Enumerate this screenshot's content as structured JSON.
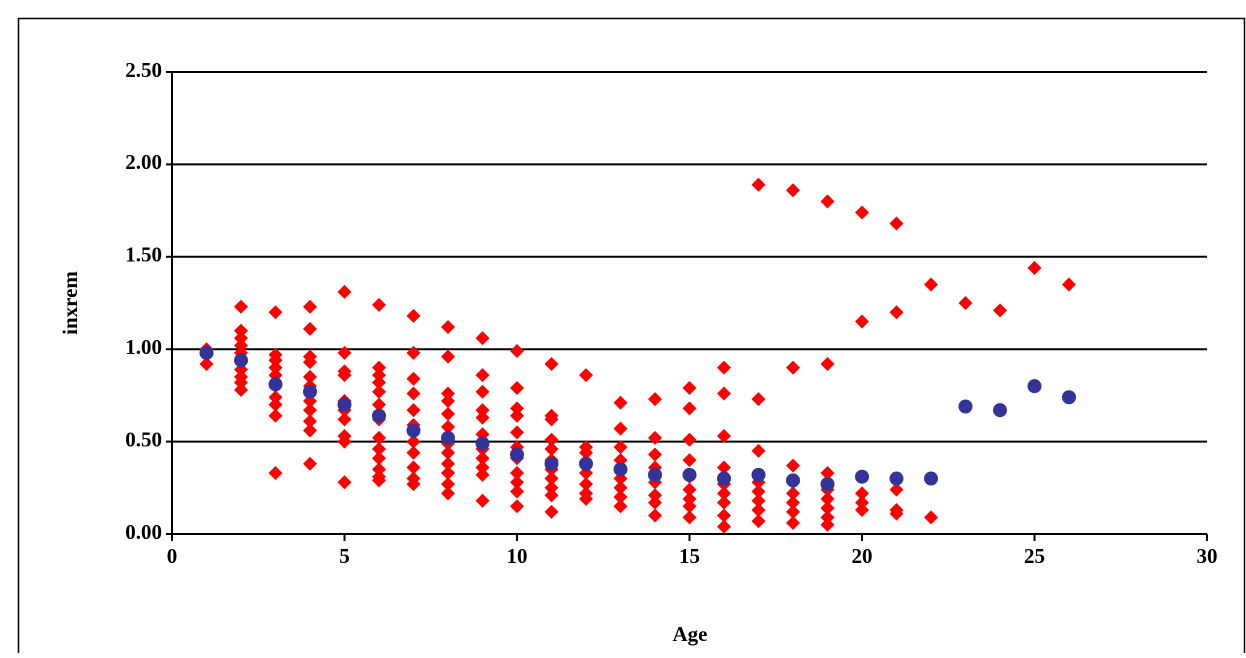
{
  "chart_data": {
    "type": "scatter",
    "x_label": "Age",
    "y_label": "inxrem",
    "xlim": [
      0,
      30
    ],
    "xticks": [
      0,
      5,
      10,
      15,
      20,
      25,
      30
    ],
    "ylim": [
      0,
      2.5
    ],
    "yticks": [
      {
        "value": 0,
        "label": "0.00"
      },
      {
        "value": 0.5,
        "label": "0.50"
      },
      {
        "value": 1,
        "label": "1.00"
      },
      {
        "value": 1.5,
        "label": "1.50"
      },
      {
        "value": 2,
        "label": "2.00"
      },
      {
        "value": 2.5,
        "label": "2.50"
      }
    ],
    "grid": true,
    "series": [
      {
        "color": "#ff0000",
        "marker": "diamond",
        "x": [
          1,
          1,
          1,
          2,
          2,
          2,
          2,
          2,
          2,
          2,
          2,
          2,
          2,
          3,
          3,
          3,
          3,
          3,
          3,
          3,
          3,
          3,
          3,
          4,
          4,
          4,
          4,
          4,
          4,
          4,
          4,
          4,
          4,
          4,
          5,
          5,
          5,
          5,
          5,
          5,
          5,
          5,
          5,
          5,
          6,
          6,
          6,
          6,
          6,
          6,
          6,
          6,
          6,
          6,
          6,
          6,
          6,
          7,
          7,
          7,
          7,
          7,
          7,
          7,
          7,
          7,
          7,
          7,
          8,
          8,
          8,
          8,
          8,
          8,
          8,
          8,
          8,
          8,
          8,
          8,
          9,
          9,
          9,
          9,
          9,
          9,
          9,
          9,
          9,
          9,
          9,
          10,
          10,
          10,
          10,
          10,
          10,
          10,
          10,
          10,
          10,
          10,
          11,
          11,
          11,
          11,
          11,
          11,
          11,
          11,
          11,
          11,
          11,
          12,
          12,
          12,
          12,
          12,
          12,
          12,
          12,
          13,
          13,
          13,
          13,
          13,
          13,
          13,
          13,
          14,
          14,
          14,
          14,
          14,
          14,
          14,
          14,
          15,
          15,
          15,
          15,
          15,
          15,
          15,
          15,
          15,
          16,
          16,
          16,
          16,
          16,
          16,
          16,
          16,
          16,
          17,
          17,
          17,
          17,
          17,
          17,
          17,
          17,
          18,
          18,
          18,
          18,
          18,
          18,
          18,
          18,
          19,
          19,
          19,
          19,
          19,
          19,
          19,
          19,
          20,
          20,
          20,
          20,
          20,
          21,
          21,
          21,
          21,
          21,
          22,
          22,
          23,
          24,
          25,
          26
        ],
        "y": [
          1.0,
          0.97,
          0.92,
          1.23,
          1.1,
          1.06,
          1.02,
          0.98,
          0.93,
          0.89,
          0.85,
          0.82,
          0.78,
          1.2,
          0.97,
          0.94,
          0.9,
          0.86,
          0.8,
          0.74,
          0.7,
          0.64,
          0.33,
          1.23,
          1.11,
          0.96,
          0.93,
          0.85,
          0.8,
          0.72,
          0.67,
          0.61,
          0.56,
          0.38,
          1.31,
          0.98,
          0.88,
          0.86,
          0.72,
          0.67,
          0.62,
          0.53,
          0.5,
          0.28,
          1.24,
          0.9,
          0.86,
          0.82,
          0.77,
          0.7,
          0.62,
          0.52,
          0.46,
          0.41,
          0.35,
          0.31,
          0.29,
          1.18,
          0.98,
          0.84,
          0.76,
          0.67,
          0.59,
          0.5,
          0.44,
          0.36,
          0.3,
          0.27,
          1.12,
          0.96,
          0.76,
          0.72,
          0.65,
          0.58,
          0.49,
          0.44,
          0.38,
          0.33,
          0.27,
          0.22,
          1.06,
          0.86,
          0.77,
          0.67,
          0.63,
          0.54,
          0.46,
          0.41,
          0.36,
          0.32,
          0.18,
          0.99,
          0.79,
          0.68,
          0.64,
          0.55,
          0.47,
          0.41,
          0.33,
          0.28,
          0.23,
          0.15,
          0.92,
          0.64,
          0.62,
          0.51,
          0.46,
          0.4,
          0.35,
          0.3,
          0.25,
          0.21,
          0.12,
          0.86,
          0.47,
          0.44,
          0.39,
          0.33,
          0.27,
          0.22,
          0.19,
          0.71,
          0.57,
          0.47,
          0.4,
          0.3,
          0.25,
          0.2,
          0.15,
          0.73,
          0.52,
          0.43,
          0.36,
          0.28,
          0.21,
          0.17,
          0.1,
          0.79,
          0.68,
          0.51,
          0.4,
          0.31,
          0.24,
          0.19,
          0.15,
          0.09,
          0.9,
          0.76,
          0.53,
          0.36,
          0.27,
          0.22,
          0.17,
          0.1,
          0.04,
          1.89,
          0.73,
          0.45,
          0.28,
          0.23,
          0.18,
          0.13,
          0.07,
          1.86,
          0.9,
          0.37,
          0.28,
          0.22,
          0.17,
          0.12,
          0.06,
          1.8,
          0.92,
          0.33,
          0.24,
          0.19,
          0.14,
          0.09,
          0.05,
          1.74,
          1.15,
          0.22,
          0.17,
          0.13,
          1.68,
          1.2,
          0.24,
          0.13,
          0.11,
          1.35,
          0.09,
          1.25,
          1.21,
          1.44,
          1.35
        ]
      },
      {
        "color": "#333399",
        "marker": "circle",
        "x": [
          1,
          2,
          3,
          4,
          5,
          6,
          7,
          8,
          9,
          10,
          11,
          12,
          13,
          14,
          15,
          16,
          17,
          18,
          19,
          20,
          21,
          22,
          23,
          24,
          25,
          26
        ],
        "y": [
          0.98,
          0.94,
          0.81,
          0.77,
          0.7,
          0.64,
          0.56,
          0.52,
          0.49,
          0.43,
          0.38,
          0.38,
          0.35,
          0.32,
          0.32,
          0.3,
          0.32,
          0.29,
          0.27,
          0.31,
          0.3,
          0.3,
          0.69,
          0.67,
          0.8,
          0.74
        ]
      }
    ]
  }
}
